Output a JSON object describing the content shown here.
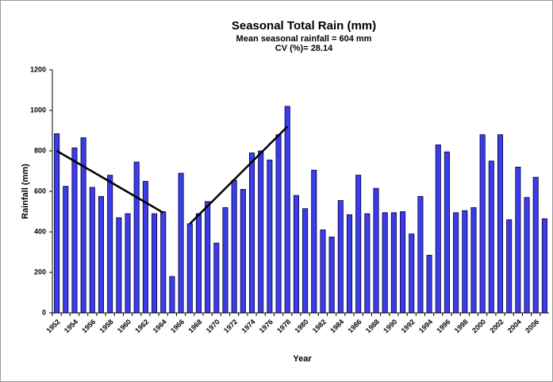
{
  "chart_data": {
    "type": "bar",
    "title": "Seasonal Total Rain (mm)",
    "subtitle": [
      "Mean seasonal rainfall = 604 mm",
      "CV  (%)=   28.14"
    ],
    "x_label": "Year",
    "y_label": "Rainfall (mm)",
    "categories": [
      "1952",
      null,
      "1954",
      null,
      "1956",
      null,
      "1958",
      null,
      "1960",
      null,
      "1962",
      null,
      "1964",
      null,
      "1966",
      null,
      "1968",
      null,
      "1970",
      null,
      "1972",
      null,
      "1974",
      null,
      "1976",
      null,
      "1978",
      null,
      "1980",
      null,
      "1982",
      null,
      "1984",
      null,
      "1986",
      null,
      "1988",
      null,
      "1990",
      null,
      "1992",
      null,
      "1994",
      null,
      "1996",
      null,
      "1998",
      null,
      "2000",
      null,
      "2002",
      null,
      "2004",
      null,
      "2006",
      null
    ],
    "values": [
      885,
      625,
      815,
      865,
      620,
      575,
      680,
      470,
      490,
      745,
      650,
      490,
      500,
      180,
      690,
      440,
      490,
      550,
      345,
      520,
      655,
      610,
      790,
      800,
      755,
      880,
      1020,
      580,
      515,
      705,
      410,
      375,
      555,
      485,
      680,
      490,
      615,
      495,
      495,
      500,
      390,
      575,
      285,
      830,
      795,
      495,
      505,
      520,
      880,
      750,
      880,
      460,
      720,
      570,
      670,
      465
    ],
    "color": "#3c3ce8",
    "trend_lines": [
      {
        "x": [
          1952,
          1964
        ],
        "y": [
          800,
          495
        ]
      },
      {
        "x": [
          1967,
          1978
        ],
        "y": [
          440,
          920
        ]
      }
    ],
    "ylim": [
      0,
      1200
    ],
    "yticks": [
      0,
      200,
      400,
      600,
      800,
      1000,
      1200
    ],
    "grid": false
  }
}
